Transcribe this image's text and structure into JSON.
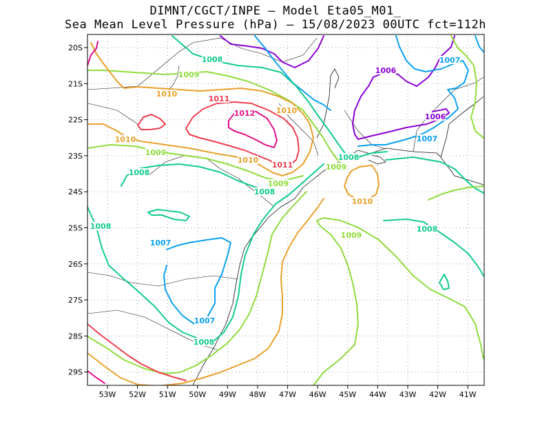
{
  "title_line1": "DIMNT/CGCT/INPE –  Model Eta05_M01_",
  "title_line2": "Sea Mean Level Pressure (hPa) – 15/08/2023 00UTC fct=112h",
  "lon_ticks": [
    "53W",
    "52W",
    "51W",
    "50W",
    "49W",
    "48W",
    "47W",
    "46W",
    "45W",
    "44W",
    "43W",
    "42W",
    "41W"
  ],
  "lat_ticks": [
    "20S",
    "21S",
    "22S",
    "23S",
    "24S",
    "25S",
    "26S",
    "27S",
    "28S",
    "29S"
  ],
  "colors": {
    "1006": "#8a00d4",
    "1007": "#0aa0f0",
    "1008": "#10cc8a",
    "1009": "#8edc3a",
    "1010": "#e8a028",
    "1011": "#f03c4c",
    "1012": "#e0108c"
  },
  "contour_labels": [
    {
      "text": "1006",
      "level": "1006"
    },
    {
      "text": "1006",
      "level": "1006"
    },
    {
      "text": "1007",
      "level": "1007"
    },
    {
      "text": "1007",
      "level": "1007"
    },
    {
      "text": "1007",
      "level": "1007"
    },
    {
      "text": "1007",
      "level": "1007"
    },
    {
      "text": "1008",
      "level": "1008"
    },
    {
      "text": "1008",
      "level": "1008"
    },
    {
      "text": "1008",
      "level": "1008"
    },
    {
      "text": "1008",
      "level": "1008"
    },
    {
      "text": "1008",
      "level": "1008"
    },
    {
      "text": "1008",
      "level": "1008"
    },
    {
      "text": "1008",
      "level": "1008"
    },
    {
      "text": "1009",
      "level": "1009"
    },
    {
      "text": "1009",
      "level": "1009"
    },
    {
      "text": "1009",
      "level": "1009"
    },
    {
      "text": "1009",
      "level": "1009"
    },
    {
      "text": "1009",
      "level": "1009"
    },
    {
      "text": "1010",
      "level": "1010"
    },
    {
      "text": "1010",
      "level": "1010"
    },
    {
      "text": "1010",
      "level": "1010"
    },
    {
      "text": "1010",
      "level": "1010"
    },
    {
      "text": "1010",
      "level": "1010"
    },
    {
      "text": "1011",
      "level": "1011"
    },
    {
      "text": "1011",
      "level": "1011"
    },
    {
      "text": "1012",
      "level": "1012"
    }
  ]
}
